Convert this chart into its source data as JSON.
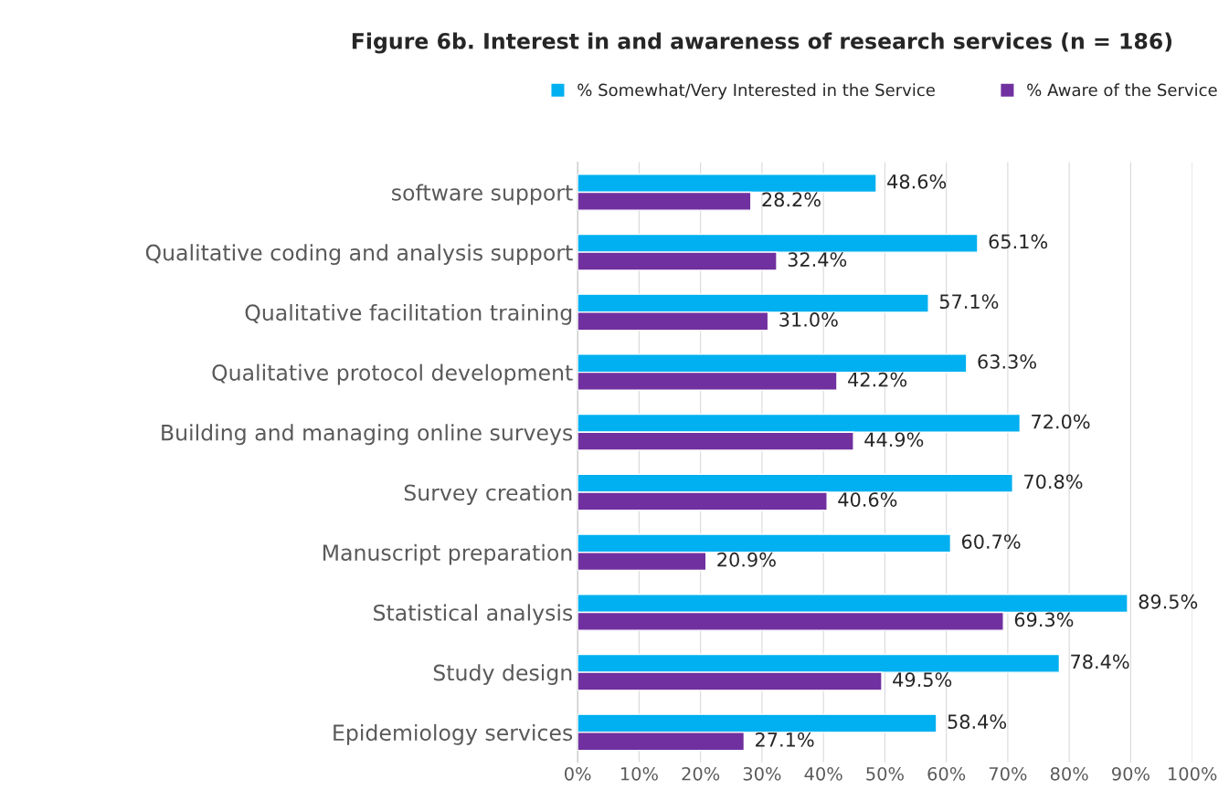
{
  "chart_data": {
    "type": "bar",
    "orientation": "horizontal",
    "title": "Figure 6b. Interest in and awareness of research services (n = 186)",
    "categories": [
      "software support",
      "Qualitative coding and analysis support",
      "Qualitative facilitation training",
      "Qualitative protocol development",
      "Building and managing online surveys",
      "Survey creation",
      "Manuscript preparation",
      "Statistical analysis",
      "Study design",
      "Epidemiology services"
    ],
    "series": [
      {
        "name": "% Somewhat/Very Interested in the Service",
        "color": "#00b0f0",
        "values": [
          48.6,
          65.1,
          57.1,
          63.3,
          72.0,
          70.8,
          60.7,
          89.5,
          78.4,
          58.4
        ],
        "value_labels": [
          "48.6%",
          "65.1%",
          "57.1%",
          "63.3%",
          "72.0%",
          "70.8%",
          "60.7%",
          "89.5%",
          "78.4%",
          "58.4%"
        ]
      },
      {
        "name": "% Aware of the Service",
        "color": "#7030a0",
        "values": [
          28.2,
          32.4,
          31.0,
          42.2,
          44.9,
          40.6,
          20.9,
          69.3,
          49.5,
          27.1
        ],
        "value_labels": [
          "28.2%",
          "32.4%",
          "31.0%",
          "42.2%",
          "44.9%",
          "40.6%",
          "20.9%",
          "69.3%",
          "49.5%",
          "27.1%"
        ]
      }
    ],
    "xlim": [
      0,
      100
    ],
    "xticks": [
      {
        "value": 0,
        "label": "0%"
      },
      {
        "value": 10,
        "label": "10%"
      },
      {
        "value": 20,
        "label": "20%"
      },
      {
        "value": 30,
        "label": "30%"
      },
      {
        "value": 40,
        "label": "40%"
      },
      {
        "value": 50,
        "label": "50%"
      },
      {
        "value": 60,
        "label": "60%"
      },
      {
        "value": 70,
        "label": "70%"
      },
      {
        "value": 80,
        "label": "80%"
      },
      {
        "value": 90,
        "label": "90%"
      },
      {
        "value": 100,
        "label": "100%"
      }
    ],
    "grid": "x",
    "legend": "top"
  }
}
